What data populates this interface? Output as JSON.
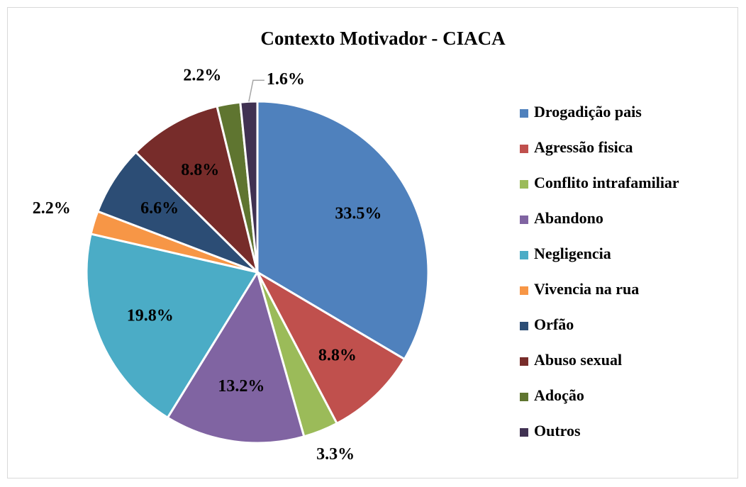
{
  "chart_data": {
    "type": "pie",
    "title": "Contexto Motivador - CIACA",
    "categories": [
      "Drogadição pais",
      "Agressão fisica",
      "Conflito intrafamiliar",
      "Abandono",
      "Negligencia",
      "Vivencia na rua",
      "Orfão",
      "Abuso sexual",
      "Adoção",
      "Outros"
    ],
    "values": [
      33.5,
      8.8,
      3.3,
      13.2,
      19.8,
      2.2,
      6.6,
      8.8,
      2.2,
      1.6
    ],
    "value_labels": [
      "33.5%",
      "8.8%",
      "3.3%",
      "13.2%",
      "19.8%",
      "2.2%",
      "6.6%",
      "8.8%",
      "2.2%",
      "1.6%"
    ],
    "colors": [
      "#4f81bd",
      "#c0504d",
      "#9bbb59",
      "#8064a2",
      "#4bacc6",
      "#f79646",
      "#2c4d75",
      "#772c2a",
      "#5f7530",
      "#403152"
    ],
    "legend": "right"
  }
}
